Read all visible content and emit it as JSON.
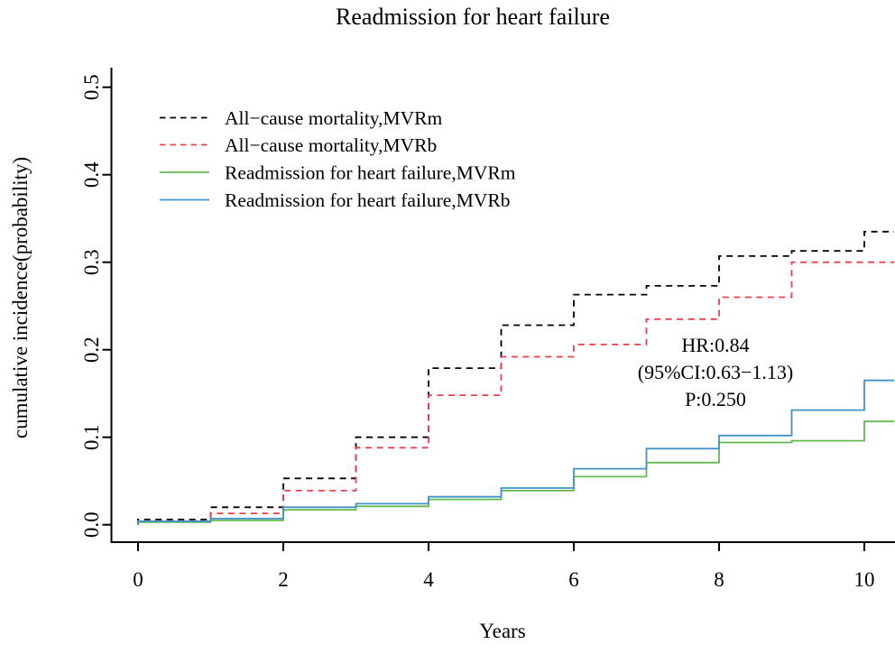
{
  "title": "Readmission for heart failure",
  "x_axis": {
    "label": "Years",
    "tick_labels": [
      "0",
      "2",
      "4",
      "6",
      "8",
      "10"
    ],
    "ticks": [
      0,
      2,
      4,
      6,
      8,
      10
    ]
  },
  "y_axis": {
    "label": "cumulative incidence(probability)",
    "tick_labels": [
      "0.0",
      "0.1",
      "0.2",
      "0.3",
      "0.4",
      "0.5"
    ],
    "ticks": [
      0.0,
      0.1,
      0.2,
      0.3,
      0.4,
      0.5
    ]
  },
  "annotation": {
    "lines": [
      "HR:0.84",
      "(95%CI:0.63−1.13)",
      "P:0.250"
    ]
  },
  "chart_data": {
    "type": "line",
    "subtype": "step-cumulative-incidence",
    "title": "Readmission for heart failure",
    "xlabel": "Years",
    "ylabel": "cumulative incidence(probability)",
    "xlim": [
      -0.37,
      10.45
    ],
    "ylim": [
      -0.02,
      0.52
    ],
    "x_end": 10.42,
    "grid": false,
    "legend_position": "top-left-inside",
    "series": [
      {
        "name": "All−cause mortality,MVRm",
        "color": "#000000",
        "style": "dashed",
        "steps": [
          [
            0,
            0.006
          ],
          [
            1,
            0.02
          ],
          [
            2,
            0.053
          ],
          [
            3,
            0.1
          ],
          [
            4,
            0.179
          ],
          [
            5,
            0.228
          ],
          [
            6,
            0.263
          ],
          [
            7,
            0.273
          ],
          [
            8,
            0.307
          ],
          [
            9,
            0.313
          ],
          [
            10,
            0.335
          ]
        ]
      },
      {
        "name": "All−cause mortality,MVRb",
        "color": "#e8414d",
        "style": "dashed",
        "steps": [
          [
            0,
            0.004
          ],
          [
            1,
            0.013
          ],
          [
            2,
            0.039
          ],
          [
            3,
            0.088
          ],
          [
            4,
            0.148
          ],
          [
            5,
            0.192
          ],
          [
            6,
            0.206
          ],
          [
            7,
            0.235
          ],
          [
            8,
            0.26
          ],
          [
            9,
            0.3
          ],
          [
            10,
            0.3
          ]
        ]
      },
      {
        "name": "Readmission for heart failure,MVRm",
        "color": "#62ba4e",
        "style": "solid",
        "steps": [
          [
            0,
            0.003
          ],
          [
            1,
            0.005
          ],
          [
            2,
            0.017
          ],
          [
            3,
            0.021
          ],
          [
            4,
            0.029
          ],
          [
            5,
            0.039
          ],
          [
            6,
            0.055
          ],
          [
            7,
            0.071
          ],
          [
            8,
            0.094
          ],
          [
            9,
            0.096
          ],
          [
            10,
            0.118
          ]
        ]
      },
      {
        "name": "Readmission for heart failure,MVRb",
        "color": "#4292c8",
        "style": "solid",
        "steps": [
          [
            0,
            0.004
          ],
          [
            1,
            0.007
          ],
          [
            2,
            0.02
          ],
          [
            3,
            0.024
          ],
          [
            4,
            0.032
          ],
          [
            5,
            0.042
          ],
          [
            6,
            0.064
          ],
          [
            7,
            0.087
          ],
          [
            8,
            0.102
          ],
          [
            9,
            0.131
          ],
          [
            10,
            0.165
          ]
        ]
      }
    ],
    "annotation": {
      "lines": [
        "HR:0.84",
        "(95%CI:0.63−1.13)",
        "P:0.250"
      ],
      "anchor_x_year": 7.95,
      "anchor_y_prob": 0.2
    }
  }
}
